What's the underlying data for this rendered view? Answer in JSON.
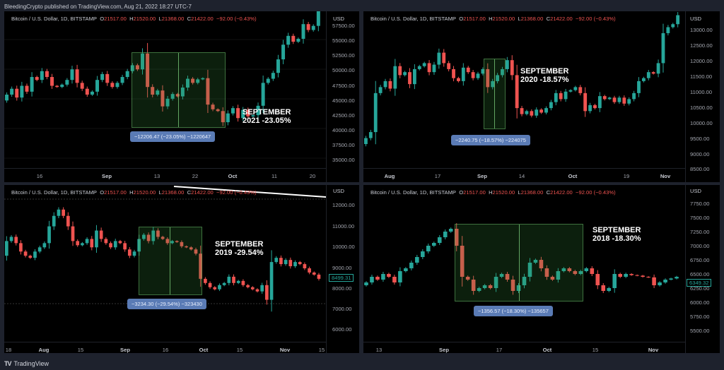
{
  "publisher": "BleedingCrypto published on TradingView.com, Aug 21, 2022 18:27 UTC-7",
  "footer": {
    "logo": "TV",
    "label": "TradingView"
  },
  "symbol_header": {
    "symbol": "Bitcoin / U.S. Dollar, 1D, BITSTAMP",
    "o_label": "O",
    "o": "21517.00",
    "h_label": "H",
    "h": "21520.00",
    "l_label": "L",
    "l": "21368.00",
    "c_label": "C",
    "c": "21422.00",
    "change": "−92.00 (−0.43%)",
    "currency": "USD"
  },
  "colors": {
    "up": "#26a69a",
    "down": "#ef5350",
    "box": "#388e3c",
    "measure": "#5a7bb5",
    "background": "#000000",
    "frame": "#1e222d"
  },
  "panels": [
    {
      "id": "2021",
      "annotation_line1": "SEPTEMBER",
      "annotation_line2": "2021 -23.05%",
      "measure": "−12206.47 (−23.05%) −1220647",
      "yticks": [
        "57500.00",
        "55000.00",
        "52500.00",
        "50000.00",
        "47500.00",
        "45000.00",
        "42500.00",
        "40000.00",
        "37500.00",
        "35000.00"
      ],
      "xticks": [
        "16",
        "Sep",
        "13",
        "22",
        "Oct",
        "11",
        "20"
      ]
    },
    {
      "id": "2020",
      "annotation_line1": "SEPTEMBER",
      "annotation_line2": "2020 -18.57%",
      "measure": "−2240.75 (−18.57%) −224075",
      "yticks": [
        "13000.00",
        "12500.00",
        "12000.00",
        "11500.00",
        "11000.00",
        "10500.00",
        "10000.00",
        "9500.00",
        "9000.00",
        "8500.00"
      ],
      "xticks": [
        "Aug",
        "17",
        "Sep",
        "14",
        "Oct",
        "19",
        "Nov"
      ]
    },
    {
      "id": "2019",
      "annotation_line1": "SEPTEMBER",
      "annotation_line2": "2019 -29.54%",
      "measure": "−3234.30 (−29.54%) −323430",
      "last_price": "8499.31",
      "yticks": [
        "12000.00",
        "11000.00",
        "10000.00",
        "9000.00",
        "8000.00",
        "7000.00",
        "6000.00"
      ],
      "xticks": [
        "18",
        "Aug",
        "15",
        "Sep",
        "16",
        "Oct",
        "15",
        "Nov",
        "15"
      ]
    },
    {
      "id": "2018",
      "annotation_line1": "SEPTEMBER",
      "annotation_line2": "2018 -18.30%",
      "measure": "−1356.57 (−18.30%) −135657",
      "last_price": "6349.32",
      "yticks": [
        "7750.00",
        "7500.00",
        "7250.00",
        "7000.00",
        "6750.00",
        "6500.00",
        "6250.00",
        "6000.00",
        "5750.00",
        "5500.00"
      ],
      "xticks": [
        "13",
        "Sep",
        "17",
        "Oct",
        "15",
        "Nov"
      ]
    }
  ],
  "chart_data": [
    {
      "type": "candlestick",
      "title": "Bitcoin / U.S. Dollar, 1D, BITSTAMP — September 2021",
      "ylabel": "USD",
      "ylim": [
        33000,
        58000
      ],
      "x_ticks": [
        "16",
        "Sep",
        "13",
        "22",
        "Oct",
        "11",
        "20"
      ],
      "annotation": "SEPTEMBER 2021 -23.05%",
      "measurement": {
        "change": -12206.47,
        "percent": -23.05,
        "from": 52900,
        "to": 40700
      },
      "approx_close_path": [
        44500,
        45500,
        46500,
        45000,
        47000,
        46000,
        48500,
        48000,
        49500,
        48500,
        47000,
        46800,
        47200,
        48000,
        49800,
        47500,
        46500,
        45500,
        46000,
        48000,
        49000,
        47500,
        46800,
        47500,
        48500,
        49500,
        50500,
        49800,
        52500,
        46800,
        45500,
        46200,
        43500,
        44800,
        45600,
        45200,
        46700,
        48200,
        47500,
        48100,
        48300,
        43800,
        43000,
        42700,
        40800,
        42300,
        43200,
        41500,
        42900,
        41800,
        42000,
        43600,
        47500,
        48200,
        49200,
        51500,
        54000,
        55500,
        54500,
        55000,
        57500,
        56500,
        57200,
        60000
      ]
    },
    {
      "type": "candlestick",
      "title": "Bitcoin / U.S. Dollar, 1D, BITSTAMP — September 2020",
      "ylabel": "USD",
      "ylim": [
        8400,
        13300
      ],
      "x_ticks": [
        "Aug",
        "17",
        "Sep",
        "14",
        "Oct",
        "19",
        "Nov"
      ],
      "annotation": "SEPTEMBER 2020 -18.57%",
      "measurement": {
        "change": -2240.75,
        "percent": -18.57,
        "from": 12060,
        "to": 9820
      },
      "approx_close_path": [
        9200,
        9400,
        9600,
        10900,
        11100,
        11300,
        11050,
        11800,
        11500,
        11600,
        11200,
        11700,
        11800,
        11900,
        11600,
        11850,
        12250,
        11900,
        11700,
        11400,
        11300,
        11750,
        11600,
        11400,
        11550,
        11700,
        11100,
        11300,
        11500,
        11700,
        12000,
        11500,
        10400,
        10200,
        10300,
        10150,
        10350,
        10250,
        10400,
        10600,
        10900,
        10700,
        10950,
        11000,
        11100,
        10900,
        10300,
        10500,
        10400,
        10800,
        10700,
        10750,
        10600,
        10750,
        10550,
        10700,
        10900,
        11300,
        11400,
        11600,
        11550,
        11900,
        12900,
        13100,
        13200,
        13500
      ]
    },
    {
      "type": "candlestick",
      "title": "Bitcoin / U.S. Dollar, 1D, BITSTAMP — September 2019",
      "ylabel": "USD",
      "ylim": [
        5500,
        12500
      ],
      "x_ticks": [
        "18",
        "Aug",
        "15",
        "Sep",
        "16",
        "Oct",
        "15",
        "Nov",
        "15"
      ],
      "annotation": "SEPTEMBER 2019 -29.54%",
      "measurement": {
        "change": -3234.3,
        "percent": -29.54,
        "from": 10950,
        "to": 7715
      },
      "last_price": 8499.31,
      "approx_close_path": [
        9600,
        10300,
        10500,
        10200,
        9800,
        9600,
        9500,
        9800,
        10000,
        10200,
        11000,
        11500,
        11800,
        11500,
        11000,
        10300,
        10100,
        10200,
        10400,
        10000,
        10800,
        10400,
        10200,
        10000,
        10300,
        10200,
        9900,
        9600,
        9800,
        10400,
        10600,
        10300,
        10800,
        10500,
        10400,
        10200,
        10300,
        10250,
        10050,
        10000,
        9900,
        9700,
        8500,
        8300,
        8100,
        8000,
        8200,
        8300,
        8600,
        8300,
        8400,
        8200,
        8100,
        8000,
        7900,
        8200,
        7500,
        9300,
        9500,
        9200,
        9400,
        9100,
        9300,
        9200,
        9000,
        8800,
        8700,
        8500
      ]
    },
    {
      "type": "candlestick",
      "title": "Bitcoin / U.S. Dollar, 1D, BITSTAMP — September 2018",
      "ylabel": "USD",
      "ylim": [
        5300,
        7900
      ],
      "x_ticks": [
        "13",
        "Sep",
        "17",
        "Oct",
        "15",
        "Nov"
      ],
      "annotation": "SEPTEMBER 2018 -18.30%",
      "measurement": {
        "change": -1356.57,
        "percent": -18.3,
        "from": 7410,
        "to": 6055
      },
      "last_price": 6349.32,
      "approx_close_path": [
        6300,
        6350,
        6450,
        6400,
        6500,
        6450,
        6350,
        6550,
        6600,
        6700,
        6800,
        6900,
        7000,
        7050,
        7150,
        7250,
        7300,
        7000,
        6450,
        6400,
        6200,
        6250,
        6300,
        6250,
        6450,
        6500,
        6400,
        6200,
        6300,
        6450,
        6700,
        6750,
        6600,
        6450,
        6400,
        6550,
        6600,
        6550,
        6500,
        6550,
        6600,
        6500,
        6300,
        6200,
        6250,
        6500,
        6450,
        6500,
        6480,
        6470,
        6450,
        6440,
        6300,
        6350,
        6400,
        6420,
        6450
      ]
    }
  ]
}
